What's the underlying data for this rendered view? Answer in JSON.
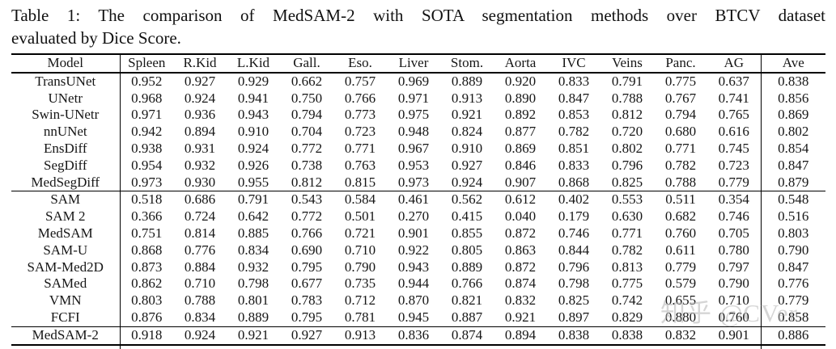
{
  "caption": {
    "line1": "Table 1: The comparison of MedSAM-2 with SOTA segmentation methods over BTCV dataset",
    "line2": "evaluated by Dice Score."
  },
  "watermark": "知乎 @CVer",
  "chart_data": {
    "type": "table",
    "title": "The comparison of MedSAM-2 with SOTA segmentation methods over BTCV dataset evaluated by Dice Score",
    "columns": [
      "Model",
      "Spleen",
      "R.Kid",
      "L.Kid",
      "Gall.",
      "Eso.",
      "Liver",
      "Stom.",
      "Aorta",
      "IVC",
      "Veins",
      "Panc.",
      "AG",
      "Ave"
    ],
    "rows": [
      {
        "model": "TransUNet",
        "group_end": false,
        "values": [
          "0.952",
          "0.927",
          "0.929",
          "0.662",
          "0.757",
          "0.969",
          "0.889",
          "0.920",
          "0.833",
          "0.791",
          "0.775",
          "0.637"
        ],
        "ave": "0.838"
      },
      {
        "model": "UNetr",
        "group_end": false,
        "values": [
          "0.968",
          "0.924",
          "0.941",
          "0.750",
          "0.766",
          "0.971",
          "0.913",
          "0.890",
          "0.847",
          "0.788",
          "0.767",
          "0.741"
        ],
        "ave": "0.856"
      },
      {
        "model": "Swin-UNetr",
        "group_end": false,
        "values": [
          "0.971",
          "0.936",
          "0.943",
          "0.794",
          "0.773",
          "0.975",
          "0.921",
          "0.892",
          "0.853",
          "0.812",
          "0.794",
          "0.765"
        ],
        "ave": "0.869"
      },
      {
        "model": "nnUNet",
        "group_end": false,
        "values": [
          "0.942",
          "0.894",
          "0.910",
          "0.704",
          "0.723",
          "0.948",
          "0.824",
          "0.877",
          "0.782",
          "0.720",
          "0.680",
          "0.616"
        ],
        "ave": "0.802"
      },
      {
        "model": "EnsDiff",
        "group_end": false,
        "values": [
          "0.938",
          "0.931",
          "0.924",
          "0.772",
          "0.771",
          "0.967",
          "0.910",
          "0.869",
          "0.851",
          "0.802",
          "0.771",
          "0.745"
        ],
        "ave": "0.854"
      },
      {
        "model": "SegDiff",
        "group_end": false,
        "values": [
          "0.954",
          "0.932",
          "0.926",
          "0.738",
          "0.763",
          "0.953",
          "0.927",
          "0.846",
          "0.833",
          "0.796",
          "0.782",
          "0.723"
        ],
        "ave": "0.847"
      },
      {
        "model": "MedSegDiff",
        "group_end": true,
        "values": [
          "0.973",
          "0.930",
          "0.955",
          "0.812",
          "0.815",
          "0.973",
          "0.924",
          "0.907",
          "0.868",
          "0.825",
          "0.788",
          "0.779"
        ],
        "ave": "0.879"
      },
      {
        "model": "SAM",
        "group_end": false,
        "values": [
          "0.518",
          "0.686",
          "0.791",
          "0.543",
          "0.584",
          "0.461",
          "0.562",
          "0.612",
          "0.402",
          "0.553",
          "0.511",
          "0.354"
        ],
        "ave": "0.548"
      },
      {
        "model": "SAM 2",
        "group_end": false,
        "values": [
          "0.366",
          "0.724",
          "0.642",
          "0.772",
          "0.501",
          "0.270",
          "0.415",
          "0.040",
          "0.179",
          "0.630",
          "0.682",
          "0.746"
        ],
        "ave": "0.516"
      },
      {
        "model": "MedSAM",
        "group_end": false,
        "values": [
          "0.751",
          "0.814",
          "0.885",
          "0.766",
          "0.721",
          "0.901",
          "0.855",
          "0.872",
          "0.746",
          "0.771",
          "0.760",
          "0.705"
        ],
        "ave": "0.803"
      },
      {
        "model": "SAM-U",
        "group_end": false,
        "values": [
          "0.868",
          "0.776",
          "0.834",
          "0.690",
          "0.710",
          "0.922",
          "0.805",
          "0.863",
          "0.844",
          "0.782",
          "0.611",
          "0.780"
        ],
        "ave": "0.790"
      },
      {
        "model": "SAM-Med2D",
        "group_end": false,
        "values": [
          "0.873",
          "0.884",
          "0.932",
          "0.795",
          "0.790",
          "0.943",
          "0.889",
          "0.872",
          "0.796",
          "0.813",
          "0.779",
          "0.797"
        ],
        "ave": "0.847"
      },
      {
        "model": "SAMed",
        "group_end": false,
        "values": [
          "0.862",
          "0.710",
          "0.798",
          "0.677",
          "0.735",
          "0.944",
          "0.766",
          "0.874",
          "0.798",
          "0.775",
          "0.579",
          "0.790"
        ],
        "ave": "0.776"
      },
      {
        "model": "VMN",
        "group_end": false,
        "values": [
          "0.803",
          "0.788",
          "0.801",
          "0.783",
          "0.712",
          "0.870",
          "0.821",
          "0.832",
          "0.825",
          "0.742",
          "0.655",
          "0.710"
        ],
        "ave": "0.779"
      },
      {
        "model": "FCFI",
        "group_end": true,
        "values": [
          "0.876",
          "0.834",
          "0.889",
          "0.795",
          "0.781",
          "0.945",
          "0.887",
          "0.921",
          "0.897",
          "0.829",
          "0.880",
          "0.760"
        ],
        "ave": "0.858"
      },
      {
        "model": "MedSAM-2",
        "group_end": false,
        "values": [
          "0.918",
          "0.924",
          "0.921",
          "0.927",
          "0.913",
          "0.836",
          "0.874",
          "0.894",
          "0.838",
          "0.838",
          "0.832",
          "0.901"
        ],
        "ave": "0.886"
      }
    ]
  }
}
